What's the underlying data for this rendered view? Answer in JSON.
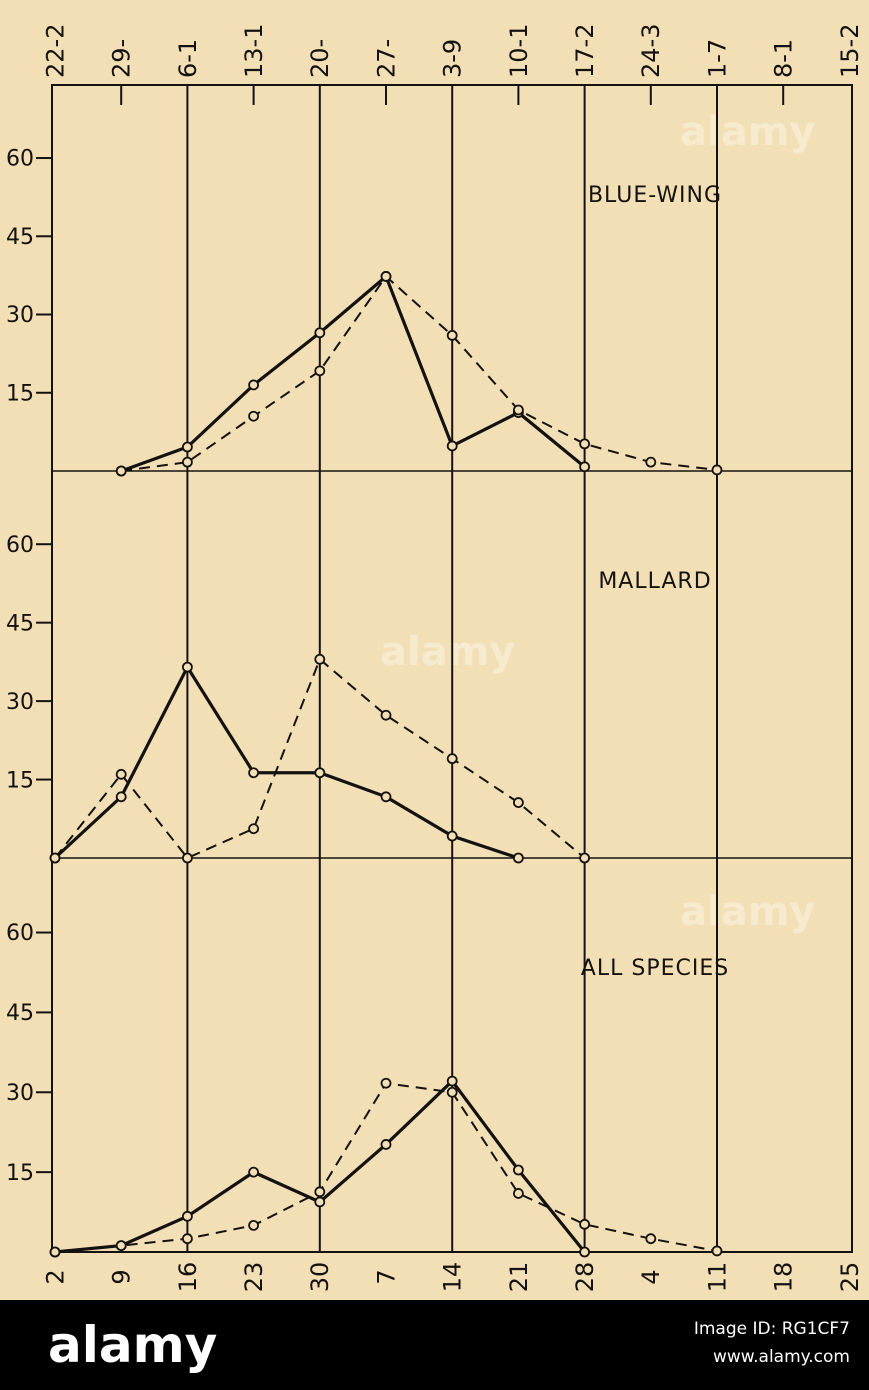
{
  "top_axis_labels": [
    "22-2",
    "29-",
    "6-1",
    "13-1",
    "20-",
    "27-",
    "3-9",
    "10-1",
    "17-2",
    "24-3",
    "1-7",
    "8-1",
    "15-2"
  ],
  "chart_data": [
    {
      "type": "line",
      "title": "BLUE-WING",
      "ylim": [
        0,
        74
      ],
      "yticks": [
        15,
        30,
        45,
        60
      ],
      "series": [
        {
          "color": "#141210",
          "style": "solid",
          "values": [
            null,
            0,
            4.6,
            16.5,
            26.5,
            37.3,
            4.8,
            11.2,
            0.8,
            null,
            null,
            null,
            null
          ]
        },
        {
          "color": "#141210",
          "style": "dashed",
          "values": [
            null,
            0,
            1.7,
            10.5,
            19.2,
            37.3,
            26,
            11.7,
            5.2,
            1.7,
            0.2,
            null,
            null
          ]
        }
      ]
    },
    {
      "type": "line",
      "title": "MALLARD",
      "ylim": [
        0,
        74
      ],
      "yticks": [
        15,
        30,
        45,
        60
      ],
      "series": [
        {
          "color": "#141210",
          "style": "solid",
          "values": [
            0,
            11.7,
            36.5,
            16.3,
            16.3,
            11.7,
            4.2,
            0,
            null,
            null,
            null,
            null,
            null
          ]
        },
        {
          "color": "#141210",
          "style": "dashed",
          "values": [
            0,
            16,
            0,
            5.6,
            38,
            27.3,
            19,
            10.6,
            0,
            null,
            null,
            null,
            null
          ]
        }
      ]
    },
    {
      "type": "line",
      "title": "ALL SPECIES",
      "ylim": [
        0,
        74
      ],
      "yticks": [
        15,
        30,
        45,
        60
      ],
      "categories": [
        "2",
        "9",
        "16",
        "23",
        "30",
        "7",
        "14",
        "21",
        "28",
        "4",
        "11",
        "18",
        "25"
      ],
      "series": [
        {
          "color": "#141210",
          "style": "solid",
          "values": [
            0,
            1.2,
            6.7,
            15,
            9.4,
            20.2,
            32.1,
            15.4,
            0,
            null,
            null,
            null,
            null
          ]
        },
        {
          "color": "#141210",
          "style": "dashed",
          "values": [
            0,
            1.2,
            2.5,
            5,
            11.3,
            31.7,
            30,
            11,
            5.2,
            2.5,
            0.2,
            null,
            null
          ]
        }
      ]
    }
  ],
  "watermark": {
    "logo": "alamy",
    "image_id": "Image ID: RG1CF7",
    "url": "www.alamy.com"
  }
}
